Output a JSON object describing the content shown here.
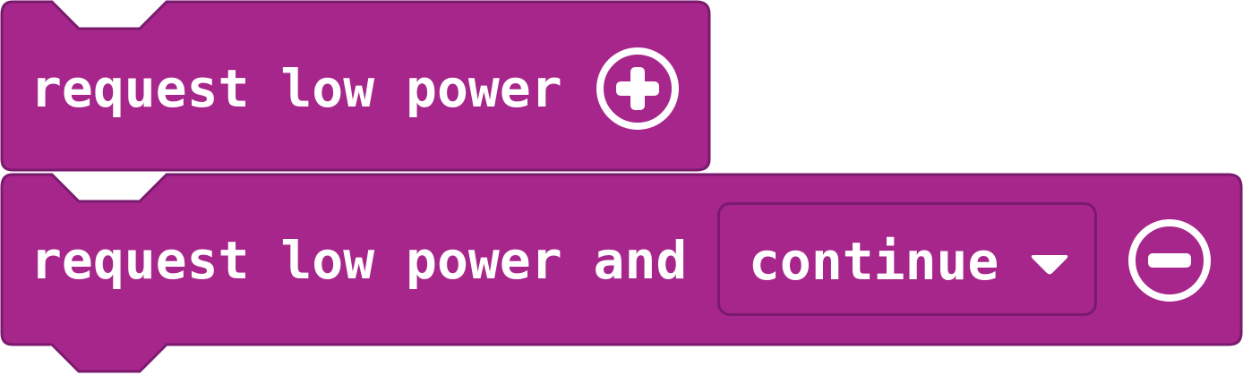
{
  "blocks": [
    {
      "label": "request low power",
      "control": "plus-icon"
    },
    {
      "label": "request low power and",
      "dropdown": {
        "selected": "continue",
        "icon": "dropdown-arrow-icon"
      },
      "control": "minus-icon"
    }
  ],
  "colors": {
    "block_fill": "#a7268b",
    "block_border": "#7a1a6e",
    "text": "#ffffff"
  }
}
